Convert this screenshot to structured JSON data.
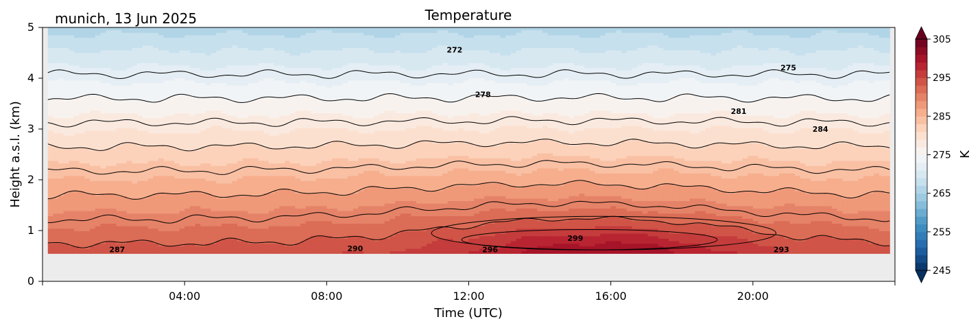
{
  "chart_data": {
    "type": "heatmap",
    "title": "Temperature",
    "subtitle": "munich, 13 Jun 2025",
    "xlabel": "Time (UTC)",
    "ylabel": "Height a.s.l. (km)",
    "x_unit": "hours",
    "xlim": [
      0,
      24
    ],
    "ylim": [
      0,
      5
    ],
    "x_ticks": [
      4,
      8,
      12,
      16,
      20
    ],
    "x_tick_labels": [
      "04:00",
      "08:00",
      "12:00",
      "16:00",
      "20:00"
    ],
    "y_ticks": [
      0,
      1,
      2,
      3,
      4,
      5
    ],
    "y_tick_labels": [
      "0",
      "1",
      "2",
      "3",
      "4",
      "5"
    ],
    "data_bottom_km": 0.55,
    "data_x_range": [
      0.15,
      23.85
    ],
    "colorbar": {
      "label": "K",
      "range": [
        245,
        305
      ],
      "extend": "both",
      "ticks": [
        245,
        255,
        265,
        275,
        285,
        295,
        305
      ],
      "tick_labels": [
        "245",
        "255",
        "265",
        "275",
        "285",
        "295",
        "305"
      ],
      "colormap": "RdBu_r"
    },
    "contour_levels": [
      272,
      275,
      278,
      281,
      284,
      287,
      290,
      293,
      296,
      299
    ],
    "contour_labels": [
      {
        "text": "272",
        "x": 11.6,
        "y": 4.56
      },
      {
        "text": "275",
        "x": 21.0,
        "y": 4.21
      },
      {
        "text": "278",
        "x": 12.4,
        "y": 3.68
      },
      {
        "text": "281",
        "x": 19.6,
        "y": 3.35
      },
      {
        "text": "284",
        "x": 21.9,
        "y": 3.0
      },
      {
        "text": "287",
        "x": 2.1,
        "y": 0.63
      },
      {
        "text": "290",
        "x": 8.8,
        "y": 0.65
      },
      {
        "text": "296",
        "x": 12.6,
        "y": 0.63
      },
      {
        "text": "299",
        "x": 15.0,
        "y": 0.85
      },
      {
        "text": "293",
        "x": 20.8,
        "y": 0.63
      }
    ],
    "colors": {
      "missing_background": "#ececec",
      "contour_line": "#000000"
    }
  }
}
